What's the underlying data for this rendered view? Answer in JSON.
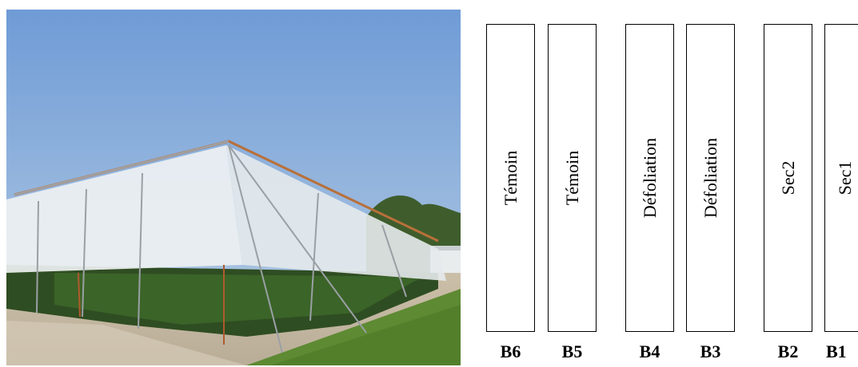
{
  "photo": {
    "subject": "greenhouse-with-white-shade-net",
    "colors": {
      "sky": "#8fb3dd",
      "net": "#eef1f2",
      "grass": "#5e8a33",
      "gravel": "#c8bfae",
      "frame": "#b8703a"
    }
  },
  "beds": [
    {
      "id": "B6",
      "treatment": "Témoin"
    },
    {
      "id": "B5",
      "treatment": "Témoin"
    },
    {
      "id": "B4",
      "treatment": "Défoliation"
    },
    {
      "id": "B3",
      "treatment": "Défoliation"
    },
    {
      "id": "B2",
      "treatment": "Sec2"
    },
    {
      "id": "B1",
      "treatment": "Sec1"
    }
  ]
}
